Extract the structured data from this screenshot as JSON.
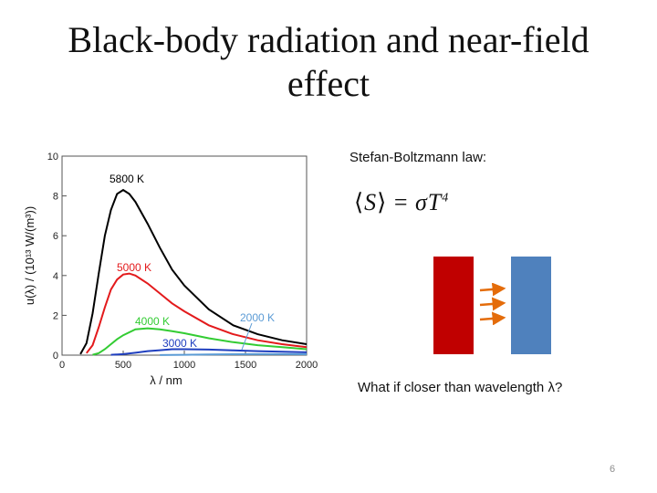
{
  "slide": {
    "title_line1": "Black-body radiation and near-field",
    "title_line2": "effect",
    "law_label": "Stefan-Boltzmann law:",
    "formula": {
      "lhs": "S",
      "rhs": "σT",
      "exponent": "4"
    },
    "question": "What if closer than wavelength λ?",
    "page_number": "6"
  },
  "colors": {
    "hot_plate": "#c00000",
    "cold_plate": "#4f81bd",
    "arrows": "#e46c0a"
  },
  "chart_data": {
    "type": "line",
    "xlabel": "λ / nm",
    "ylabel": "u(λ) / (10¹³ W/(m³))",
    "xlim": [
      0,
      2000
    ],
    "ylim": [
      0,
      10
    ],
    "xticks": [
      0,
      500,
      1000,
      1500,
      2000
    ],
    "yticks": [
      0,
      2,
      4,
      6,
      8,
      10
    ],
    "series": [
      {
        "name": "5800 K",
        "temperature": 5800,
        "color": "#000000",
        "label_color": "#000000",
        "x": [
          150,
          200,
          250,
          300,
          350,
          400,
          450,
          500,
          550,
          600,
          700,
          800,
          900,
          1000,
          1200,
          1400,
          1600,
          1800,
          2000
        ],
        "y": [
          0.05,
          0.6,
          2.1,
          4.1,
          6.0,
          7.3,
          8.1,
          8.3,
          8.1,
          7.7,
          6.6,
          5.4,
          4.3,
          3.5,
          2.3,
          1.5,
          1.05,
          0.75,
          0.55
        ]
      },
      {
        "name": "5000 K",
        "temperature": 5000,
        "color": "#e31a1c",
        "label_color": "#e31a1c",
        "x": [
          200,
          250,
          300,
          350,
          400,
          450,
          500,
          550,
          600,
          700,
          800,
          900,
          1000,
          1200,
          1400,
          1600,
          1800,
          2000
        ],
        "y": [
          0.1,
          0.5,
          1.4,
          2.4,
          3.3,
          3.8,
          4.05,
          4.1,
          4.0,
          3.6,
          3.1,
          2.6,
          2.2,
          1.5,
          1.05,
          0.75,
          0.55,
          0.4
        ]
      },
      {
        "name": "4000 K",
        "temperature": 4000,
        "color": "#33cc33",
        "label_color": "#33cc33",
        "x": [
          250,
          300,
          350,
          400,
          450,
          500,
          600,
          700,
          800,
          900,
          1000,
          1200,
          1400,
          1600,
          1800,
          2000
        ],
        "y": [
          0.02,
          0.1,
          0.3,
          0.55,
          0.8,
          1.0,
          1.3,
          1.35,
          1.3,
          1.2,
          1.1,
          0.85,
          0.65,
          0.5,
          0.4,
          0.3
        ]
      },
      {
        "name": "3000 K",
        "temperature": 3000,
        "color": "#1f3fbf",
        "label_color": "#1f3fbf",
        "x": [
          400,
          500,
          600,
          700,
          800,
          900,
          1000,
          1200,
          1400,
          1600,
          1800,
          2000
        ],
        "y": [
          0.02,
          0.05,
          0.12,
          0.2,
          0.25,
          0.3,
          0.3,
          0.28,
          0.24,
          0.2,
          0.17,
          0.14
        ]
      },
      {
        "name": "2000 K",
        "temperature": 2000,
        "color": "#5b9bd5",
        "label_color": "#5b9bd5",
        "x": [
          800,
          1000,
          1200,
          1400,
          1600,
          1800,
          2000
        ],
        "y": [
          0.005,
          0.02,
          0.035,
          0.045,
          0.05,
          0.05,
          0.048
        ]
      }
    ]
  }
}
